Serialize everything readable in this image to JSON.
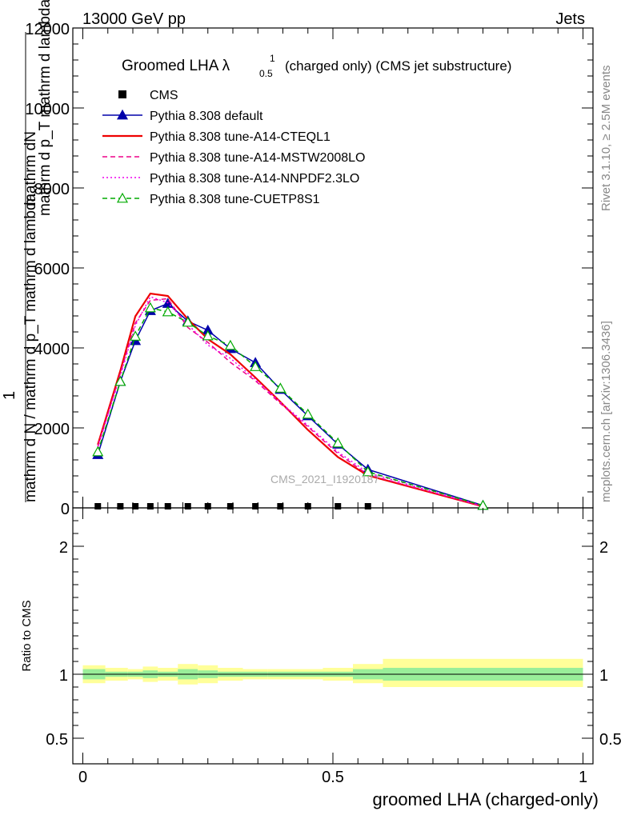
{
  "header": {
    "left": "13000 GeV pp",
    "right": "Jets"
  },
  "side_labels": {
    "rivet": "Rivet 3.1.10, ≥ 2.5M events",
    "mcplots": "mcplots.cern.ch [arXiv:1306.3436]"
  },
  "watermark": "CMS_2021_I1920187",
  "chart_data": [
    {
      "type": "line",
      "title": "Groomed LHA λ",
      "title_sup": "1",
      "title_sub": "0.5",
      "title_rest": "(charged only) (CMS jet substructure)",
      "ylabel_top": "mathrm dN",
      "ylabel_mid": "mathrm d p_T mathrm d lambda",
      "ylabel_front": "1",
      "ylabel_bottom": "mathrm d N / mathrm d p_T mathrm d lambda",
      "xlim": [
        -0.02,
        1.02
      ],
      "ylim": [
        0,
        12000
      ],
      "yticks": [
        0,
        2000,
        4000,
        6000,
        8000,
        10000,
        12000
      ],
      "ytick_labels": [
        "0",
        "2000",
        "4000",
        "6000",
        "8000",
        "10000",
        "12000"
      ],
      "legend": [
        {
          "label": "CMS",
          "color": "#000000",
          "style": "square"
        },
        {
          "label": "Pythia 8.308 default",
          "color": "#0000aa",
          "style": "solid-triangle"
        },
        {
          "label": "Pythia 8.308 tune-A14-CTEQL1",
          "color": "#ee0000",
          "style": "solid"
        },
        {
          "label": "Pythia 8.308 tune-A14-MSTW2008LO",
          "color": "#ee0088",
          "style": "dashed"
        },
        {
          "label": "Pythia 8.308 tune-A14-NNPDF2.3LO",
          "color": "#ee00ee",
          "style": "dotted"
        },
        {
          "label": "Pythia 8.308 tune-CUETP8S1",
          "color": "#00aa00",
          "style": "dashed-open-triangle"
        }
      ],
      "x": [
        0.03,
        0.075,
        0.105,
        0.135,
        0.17,
        0.21,
        0.25,
        0.295,
        0.345,
        0.395,
        0.45,
        0.51,
        0.57,
        0.8
      ],
      "cms_values": [
        0,
        0,
        0,
        0,
        0,
        0,
        0,
        0,
        0,
        0,
        0,
        0,
        0
      ],
      "cms_x": [
        0.03,
        0.075,
        0.105,
        0.135,
        0.17,
        0.21,
        0.25,
        0.295,
        0.345,
        0.395,
        0.45,
        0.51,
        0.57
      ],
      "series": [
        {
          "name": "Pythia 8.308 default",
          "color": "#0000aa",
          "dash": "",
          "marker": "solid-triangle",
          "values": [
            1330,
            3160,
            4180,
            4930,
            5110,
            4670,
            4440,
            3980,
            3630,
            2960,
            2300,
            1590,
            960,
            60
          ]
        },
        {
          "name": "Pythia 8.308 tune-A14-CTEQL1",
          "color": "#ee0000",
          "dash": "",
          "marker": "",
          "values": [
            1580,
            3430,
            4790,
            5360,
            5300,
            4720,
            4220,
            3840,
            3260,
            2650,
            1950,
            1270,
            810,
            35
          ]
        },
        {
          "name": "Pythia 8.308 tune-A14-MSTW2008LO",
          "color": "#ee0088",
          "dash": "6,4",
          "marker": "",
          "values": [
            1520,
            3360,
            4620,
            5190,
            5230,
            4510,
            4140,
            3640,
            3180,
            2610,
            2030,
            1360,
            830,
            40
          ]
        },
        {
          "name": "Pythia 8.308 tune-A14-NNPDF2.3LO",
          "color": "#ee00ee",
          "dash": "2,3",
          "marker": "",
          "values": [
            1550,
            3300,
            4560,
            5280,
            5130,
            4590,
            4070,
            3740,
            3210,
            2640,
            2060,
            1400,
            880,
            45
          ]
        },
        {
          "name": "Pythia 8.308 tune-CUETP8S1",
          "color": "#00aa00",
          "dash": "6,4",
          "marker": "open-triangle",
          "values": [
            1400,
            3160,
            4290,
            5000,
            4900,
            4640,
            4300,
            4060,
            3530,
            2990,
            2340,
            1620,
            900,
            60
          ]
        }
      ]
    },
    {
      "type": "area",
      "ylabel": "Ratio to CMS",
      "xlabel": "groomed LHA (charged-only)",
      "xlim": [
        -0.02,
        1.02
      ],
      "ylim": [
        0.3,
        2.3
      ],
      "xticks": [
        0,
        0.5,
        1
      ],
      "xtick_labels": [
        "0",
        "0.5",
        "1"
      ],
      "yticks": [
        0.5,
        1,
        2
      ],
      "ytick_labels": [
        "0.5",
        "1",
        "2"
      ],
      "bin_edges": [
        0,
        0.045,
        0.09,
        0.12,
        0.15,
        0.19,
        0.23,
        0.27,
        0.32,
        0.37,
        0.42,
        0.48,
        0.54,
        0.6,
        1.0
      ],
      "band_outer": [
        [
          0.93,
          1.07
        ],
        [
          0.95,
          1.05
        ],
        [
          0.96,
          1.04
        ],
        [
          0.94,
          1.06
        ],
        [
          0.95,
          1.05
        ],
        [
          0.92,
          1.08
        ],
        [
          0.93,
          1.07
        ],
        [
          0.95,
          1.05
        ],
        [
          0.96,
          1.04
        ],
        [
          0.96,
          1.04
        ],
        [
          0.96,
          1.04
        ],
        [
          0.95,
          1.05
        ],
        [
          0.93,
          1.08
        ],
        [
          0.9,
          1.12
        ]
      ],
      "band_inner": [
        [
          0.96,
          1.04
        ],
        [
          0.98,
          1.02
        ],
        [
          0.98,
          1.02
        ],
        [
          0.97,
          1.03
        ],
        [
          0.98,
          1.02
        ],
        [
          0.96,
          1.04
        ],
        [
          0.97,
          1.03
        ],
        [
          0.98,
          1.02
        ],
        [
          0.98,
          1.02
        ],
        [
          0.98,
          1.02
        ],
        [
          0.98,
          1.02
        ],
        [
          0.98,
          1.02
        ],
        [
          0.96,
          1.04
        ],
        [
          0.95,
          1.05
        ]
      ],
      "reference": 1
    }
  ]
}
